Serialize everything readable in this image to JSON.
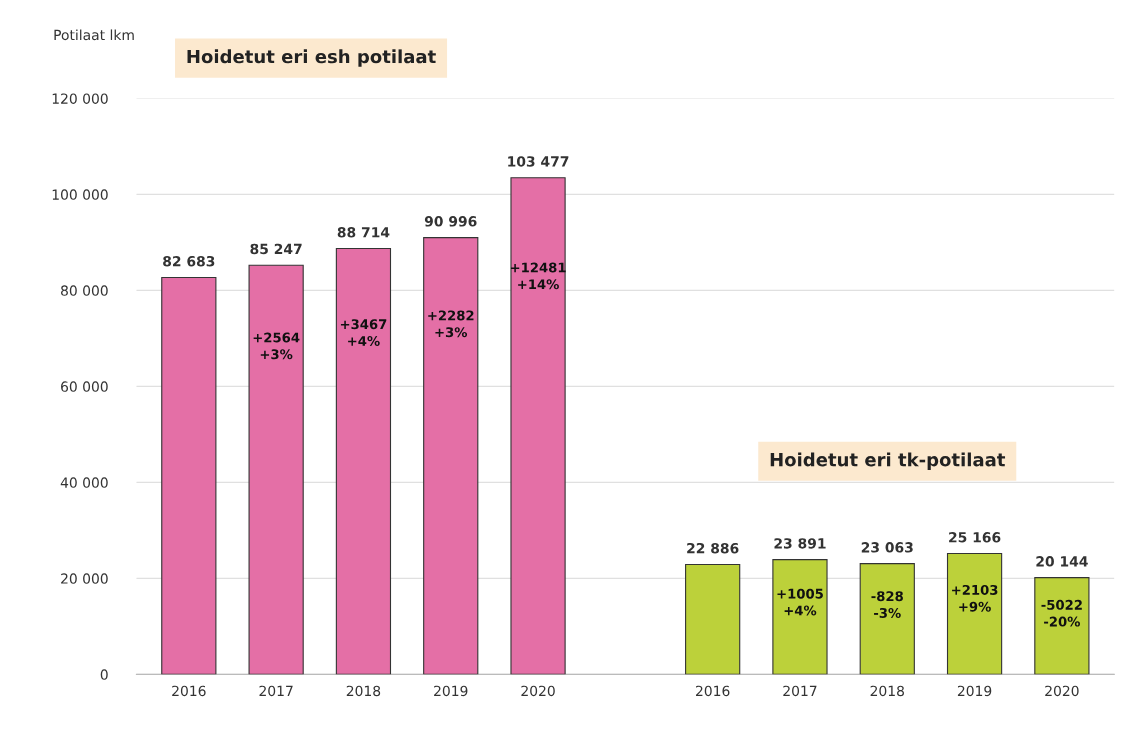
{
  "chart_data": {
    "type": "bar",
    "ylabel": "Potilaat lkm",
    "categories": [
      "2016",
      "2017",
      "2018",
      "2019",
      "2020",
      null,
      "2016",
      "2017",
      "2018",
      "2019",
      "2020"
    ],
    "series": [
      {
        "color": "#e46fa6",
        "values": [
          82683,
          85247,
          88714,
          90996,
          103477,
          null,
          null,
          null,
          null,
          null,
          null
        ],
        "value_labels": [
          "82 683",
          "85 247",
          "88 714",
          "90 996",
          "103 477",
          null,
          null,
          null,
          null,
          null,
          null
        ]
      },
      {
        "color": "#bcd13a",
        "values": [
          null,
          null,
          null,
          null,
          null,
          null,
          22886,
          23891,
          23063,
          25166,
          20144
        ],
        "value_labels": [
          null,
          null,
          null,
          null,
          null,
          null,
          "22 886",
          "23 891",
          "23 063",
          "25 166",
          "20 144"
        ]
      }
    ],
    "ylim": [
      0,
      120000
    ],
    "yticks": [
      0,
      {
        "value": 20000,
        "label": "20 000"
      },
      {
        "value": 40000,
        "label": "40 000"
      },
      {
        "value": 60000,
        "label": "60 000"
      },
      {
        "value": 80000,
        "label": "80 000"
      },
      {
        "value": 100000,
        "label": "100 000"
      },
      {
        "value": 120000,
        "label": "120 000"
      }
    ],
    "grid": "y",
    "annotations": [
      "Hoidetut eri esh potilaat",
      "Hoidetut eri tk-potilaat",
      "+2564\n+3%",
      "+3467\n+4%",
      "+2282\n+3%",
      "+12481\n+14%",
      "+1005\n+4%",
      "-828\n-3%",
      "+2103\n+9%",
      "-5022\n-20%"
    ]
  }
}
